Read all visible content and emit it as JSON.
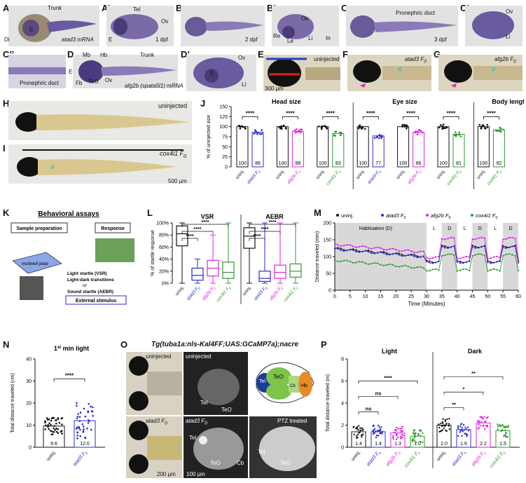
{
  "row1": {
    "A": {
      "label": "A",
      "trunk": "Trunk",
      "E": "E",
      "Di": "Di",
      "caption": "atad3 mRNA"
    },
    "A2": {
      "label": "A’",
      "Tel": "Tel",
      "Ov": "Ov",
      "E": "E",
      "stage": "1 dpf"
    },
    "B": {
      "label": "B",
      "stage": "2 dpf"
    },
    "B2": {
      "label": "B’",
      "Ov": "Ov",
      "Re": "Re",
      "Le": "Le",
      "Li": "Li",
      "In": "In"
    },
    "C": {
      "label": "C",
      "duct": "Pronephric duct",
      "stage": "3 dpf"
    },
    "C2": {
      "label": "C’",
      "Ov": "Ov",
      "Li": "Li"
    }
  },
  "row2": {
    "C3": {
      "label": "C’’",
      "duct": "Pronephric duct"
    },
    "D": {
      "label": "D",
      "Mb": "Mb",
      "Hb": "Hb",
      "Trunk": "Trunk",
      "E": "E",
      "Fb": "Fb",
      "TeO": "TeO",
      "Ov": "Ov",
      "caption": "afg2b (spata5l1) mRNA"
    },
    "D2": {
      "label": "D’",
      "Ov": "Ov",
      "E": "E",
      "Li": "Li"
    },
    "E": {
      "label": "E",
      "tag": "uninjected",
      "scale": "300 µm"
    },
    "F": {
      "label": "F",
      "tag": "atad3 F",
      "sub": "0"
    },
    "G": {
      "label": "G",
      "tag": "afg2b F",
      "sub": "0"
    }
  },
  "H": {
    "label": "H",
    "tag": "uninjected"
  },
  "I": {
    "label": "I",
    "tag": "cox4i1 F",
    "sub": "0",
    "scale": "500 µm"
  },
  "J": {
    "label": "J",
    "ylabel": "% of uninjected size",
    "groups": [
      {
        "title": "Head size",
        "bars": [
          {
            "name": "uninj.",
            "mean": 100,
            "color": "#111111"
          },
          {
            "name": "atad3 F0",
            "mean": 86,
            "color": "#2b2bd6"
          }
        ]
      },
      {
        "title": "",
        "bars": [
          {
            "name": "uninj.",
            "mean": 100,
            "color": "#111111"
          },
          {
            "name": "afg2b F0",
            "mean": 88,
            "color": "#e020e0"
          }
        ]
      },
      {
        "title": "",
        "bars": [
          {
            "name": "uninj.",
            "mean": 100,
            "color": "#111111"
          },
          {
            "name": "cox4i1 F0",
            "mean": 83,
            "color": "#2e9a2e"
          }
        ]
      },
      {
        "title": "Eye size",
        "bars": [
          {
            "name": "uninj.",
            "mean": 100,
            "color": "#111111"
          },
          {
            "name": "atad3 F0",
            "mean": 77,
            "color": "#2b2bd6"
          }
        ]
      },
      {
        "title": "",
        "bars": [
          {
            "name": "uninj.",
            "mean": 100,
            "color": "#111111"
          },
          {
            "name": "afg2b F0",
            "mean": 86,
            "color": "#e020e0"
          }
        ]
      },
      {
        "title": "",
        "bars": [
          {
            "name": "uninj.",
            "mean": 100,
            "color": "#111111"
          },
          {
            "name": "cox4i1 F0",
            "mean": 81,
            "color": "#2e9a2e"
          }
        ]
      },
      {
        "title": "Body length",
        "bars": [
          {
            "name": "uninj.",
            "mean": 100,
            "color": "#111111"
          },
          {
            "name": "cox4i1 F0",
            "mean": 92,
            "color": "#2e9a2e"
          }
        ]
      }
    ],
    "ylim": [
      0,
      150
    ],
    "yticks": [
      0,
      25,
      50,
      75,
      100,
      125,
      150
    ],
    "sig": "****"
  },
  "K": {
    "label": "K",
    "title": "Behavioral assays",
    "prep": "Sample preparation",
    "response": "Response",
    "plate": "multiwell plate",
    "s1": "Light startle (VSR)",
    "s2": "Light-dark transitions",
    "or": "or",
    "s3": "Sound startle (AEBR)",
    "ext": "External stimulus"
  },
  "L": {
    "label": "L",
    "ylabel": "% of startle response",
    "panels": [
      "VSR",
      "AEBR"
    ],
    "yticks": [
      0,
      20,
      40,
      60,
      80,
      100
    ],
    "cats": [
      "uninj.",
      "atad3 F0",
      "afg2b F0",
      "cox4i1 F0"
    ],
    "colors": [
      "#111111",
      "#2b2bd6",
      "#e020e0",
      "#2e9a2e"
    ],
    "boxes": [
      [
        {
          "min": 0,
          "q1": 62,
          "med": 82,
          "q3": 95,
          "max": 100
        },
        {
          "min": 0,
          "q1": 5,
          "med": 13,
          "q3": 25,
          "max": 40
        },
        {
          "min": 0,
          "q1": 12,
          "med": 25,
          "q3": 38,
          "max": 80
        },
        {
          "min": 0,
          "q1": 8,
          "med": 18,
          "q3": 35,
          "max": 100
        }
      ],
      [
        {
          "min": 0,
          "q1": 58,
          "med": 78,
          "q3": 92,
          "max": 100
        },
        {
          "min": 0,
          "q1": 3,
          "med": 8,
          "q3": 20,
          "max": 100
        },
        {
          "min": 0,
          "q1": 8,
          "med": 18,
          "q3": 30,
          "max": 100
        },
        {
          "min": 0,
          "q1": 10,
          "med": 20,
          "q3": 32,
          "max": 100
        }
      ]
    ],
    "sig": "****"
  },
  "M": {
    "label": "M",
    "ylabel": "Distance traveled (mm)",
    "xlabel": "Time (Minutes)",
    "legend": [
      "uninj.",
      "atad3 F",
      "afg2b F",
      "cox4i1 F"
    ],
    "legend_sub": "0",
    "colors": [
      "#111111",
      "#2b2bd6",
      "#e020e0",
      "#2e9a2e"
    ],
    "xticks": [
      0,
      5,
      10,
      15,
      20,
      25,
      30,
      35,
      40,
      45,
      50,
      55,
      60
    ],
    "yticks": [
      0,
      50,
      100,
      150,
      200
    ],
    "xlim": [
      0,
      60
    ],
    "ylim": [
      0,
      200
    ],
    "habituation": "Habituation (D)",
    "L": "L",
    "D": "D"
  },
  "N": {
    "label": "N",
    "title": "1",
    "title_sup": "st",
    "title_rest": " min light",
    "ylabel": "Total distance traveled (cm)",
    "cats": [
      "uninj.",
      "atad3 F0"
    ],
    "means": [
      9.6,
      12.0
    ],
    "mean_labels": [
      "9.6",
      "12.0"
    ],
    "colors": [
      "#111111",
      "#2b2bd6"
    ],
    "yticks": [
      0,
      10,
      20,
      30,
      40
    ],
    "ylim": [
      0,
      40
    ],
    "sig": "****"
  },
  "O": {
    "label": "O",
    "title": "Tg(tuba1a:nls-Kal4FF;UAS:GCaMP7a);nacre",
    "uninj": "uninjected",
    "uninj2": "uninjected",
    "atad": "atad3 F",
    "atad_sub": "0",
    "atad2": "atad3 F",
    "ptz": "PTZ treated",
    "Tel": "Tel",
    "TeO": "TeO",
    "Cb": "Cb",
    "Hb": "Hb",
    "scale1": "200 µm",
    "scale2": "100 µm"
  },
  "P": {
    "label": "P",
    "ylabel": "Total distance traveled (m)",
    "panels": [
      "Light",
      "Dark"
    ],
    "cats": [
      "uninj.",
      "atad3 F0",
      "afg2b F0",
      "cox4i1 F0"
    ],
    "colors": [
      "#111111",
      "#2b2bd6",
      "#e020e0",
      "#2e9a2e"
    ],
    "light": [
      1.4,
      1.4,
      1.3,
      1.0
    ],
    "light_labels": [
      "1.4",
      "1.4",
      "1.3",
      "1.0"
    ],
    "dark": [
      2.0,
      1.6,
      2.2,
      1.5
    ],
    "dark_labels": [
      "2.0",
      "1.6",
      "2.2",
      "1.5"
    ],
    "yticks": [
      0,
      2,
      4,
      6,
      8
    ],
    "ylim": [
      0,
      8
    ],
    "light_sig": [
      "ns",
      "ns",
      "****"
    ],
    "dark_sig": [
      "**",
      "*",
      "**"
    ]
  }
}
